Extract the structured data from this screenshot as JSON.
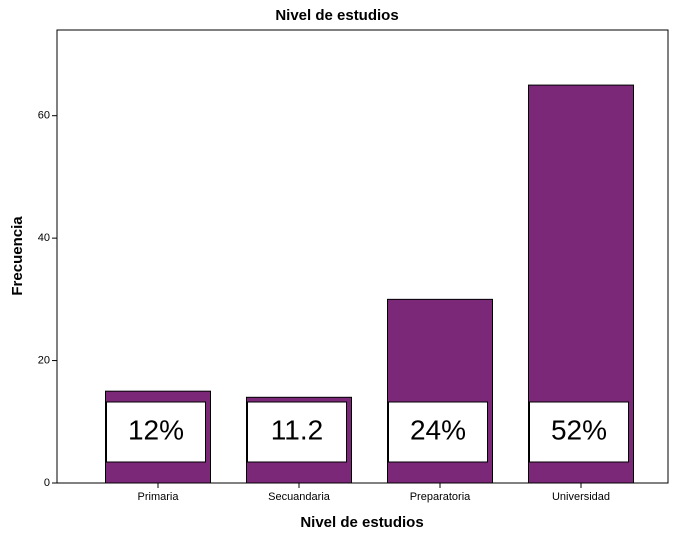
{
  "chart_data": {
    "type": "bar",
    "title": "Nivel de estudios",
    "x_label": "Nivel de estudios",
    "y_label": "Frecuencia",
    "categories": [
      "Primaria",
      "Secuandaria",
      "Preparatoria",
      "Universidad"
    ],
    "values": [
      15,
      14,
      30,
      65
    ],
    "color": "#7b2878",
    "percent_values": [
      12,
      11.2,
      24,
      52
    ],
    "percent_labels": [
      "12%",
      "11.2",
      "24%",
      "52%"
    ],
    "ylim": [
      0,
      74
    ],
    "yticks": [
      0,
      20,
      40,
      60
    ],
    "grid": false
  }
}
